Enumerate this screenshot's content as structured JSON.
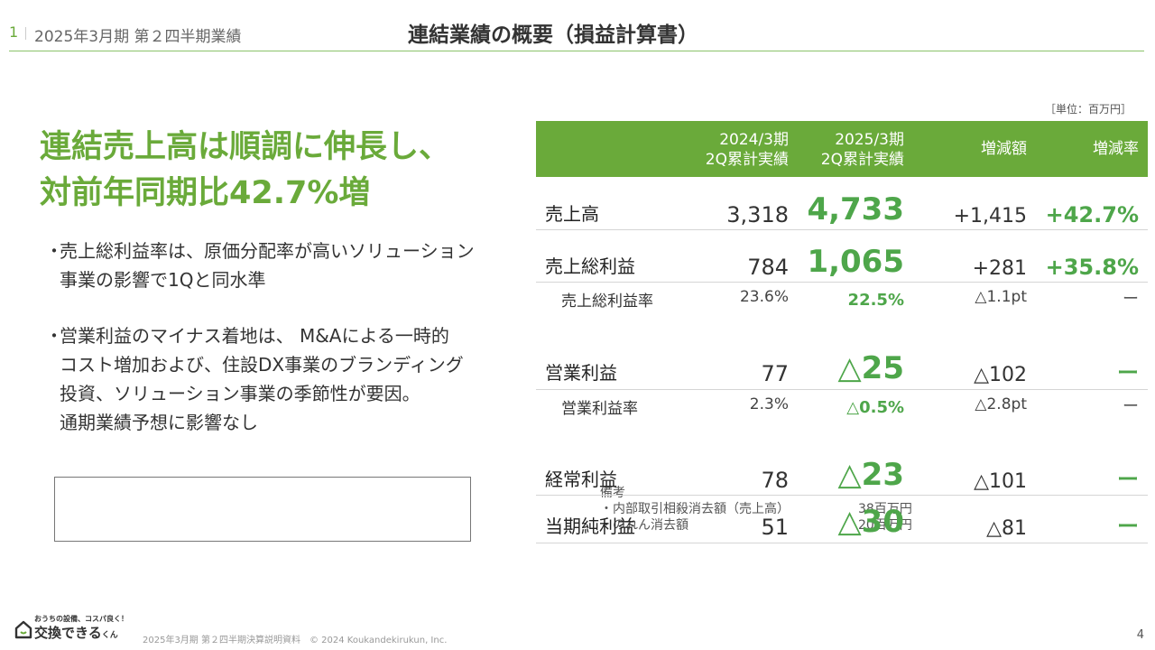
{
  "header": {
    "page_num": "1",
    "breadcrumb": "2025年3月期 第２四半期業績",
    "title": "連結業績の概要（損益計算書）"
  },
  "headline": [
    "連結売上高は順調に伸長し、",
    "対前年同期比42.7%増"
  ],
  "bullets": [
    {
      "dot": "・",
      "lines": [
        "売上総利益率は、原価分配率が高いソリューション",
        "事業の影響で1Qと同水準"
      ]
    },
    {
      "dot": "・",
      "lines": [
        "営業利益のマイナス着地は、 M&Aによる一時的",
        "コスト増加および、住設DX事業のブランディング",
        "投資、ソリューション事業の季節性が要因。",
        "通期業績予想に影響なし"
      ]
    }
  ],
  "notes": {
    "title": "備考",
    "items": [
      {
        "label": "・内部取引相殺消去額（売上高）",
        "value": "38百万円"
      },
      {
        "label": "・のれん消去額",
        "value": "20百万円"
      }
    ]
  },
  "table": {
    "unit": "［単位：百万円］",
    "headers": {
      "prev": [
        "2024/3期",
        "2Q累計実績"
      ],
      "curr": [
        "2025/3期",
        "2Q累計実績"
      ],
      "diff": "増減額",
      "rate": "増減率"
    },
    "rows": [
      {
        "label": "売上高",
        "prev": "3,318",
        "curr": "4,733",
        "diff": "+1,415",
        "rate": "+42.7%"
      },
      {
        "label": "売上総利益",
        "prev": "784",
        "curr": "1,065",
        "diff": "+281",
        "rate": "+35.8%"
      },
      {
        "label": "売上総利益率",
        "prev": "23.6%",
        "curr": "22.5%",
        "diff": "△1.1pt",
        "rate": "ー"
      },
      {
        "label": "営業利益",
        "prev": "77",
        "curr": "△25",
        "diff": "△102",
        "rate": "ー"
      },
      {
        "label": "営業利益率",
        "prev": "2.3%",
        "curr": "△0.5%",
        "diff": "△2.8pt",
        "rate": "ー"
      },
      {
        "label": "経常利益",
        "prev": "78",
        "curr": "△23",
        "diff": "△101",
        "rate": "ー"
      },
      {
        "label": "当期純利益",
        "prev": "51",
        "curr": "△30",
        "diff": "△81",
        "rate": "ー"
      }
    ]
  },
  "footer": {
    "logo_tagline": "おうちの設備、コスパ良く！",
    "logo_name": "交換できる",
    "logo_suffix": "くん",
    "text": "2025年3月期 第２四半期決算説明資料　© 2024 Koukandekirukun, Inc.",
    "page": "4"
  },
  "colors": {
    "accent": "#6aaa3a",
    "value_green": "#4ea64a",
    "rule": "#d5d5d5"
  }
}
